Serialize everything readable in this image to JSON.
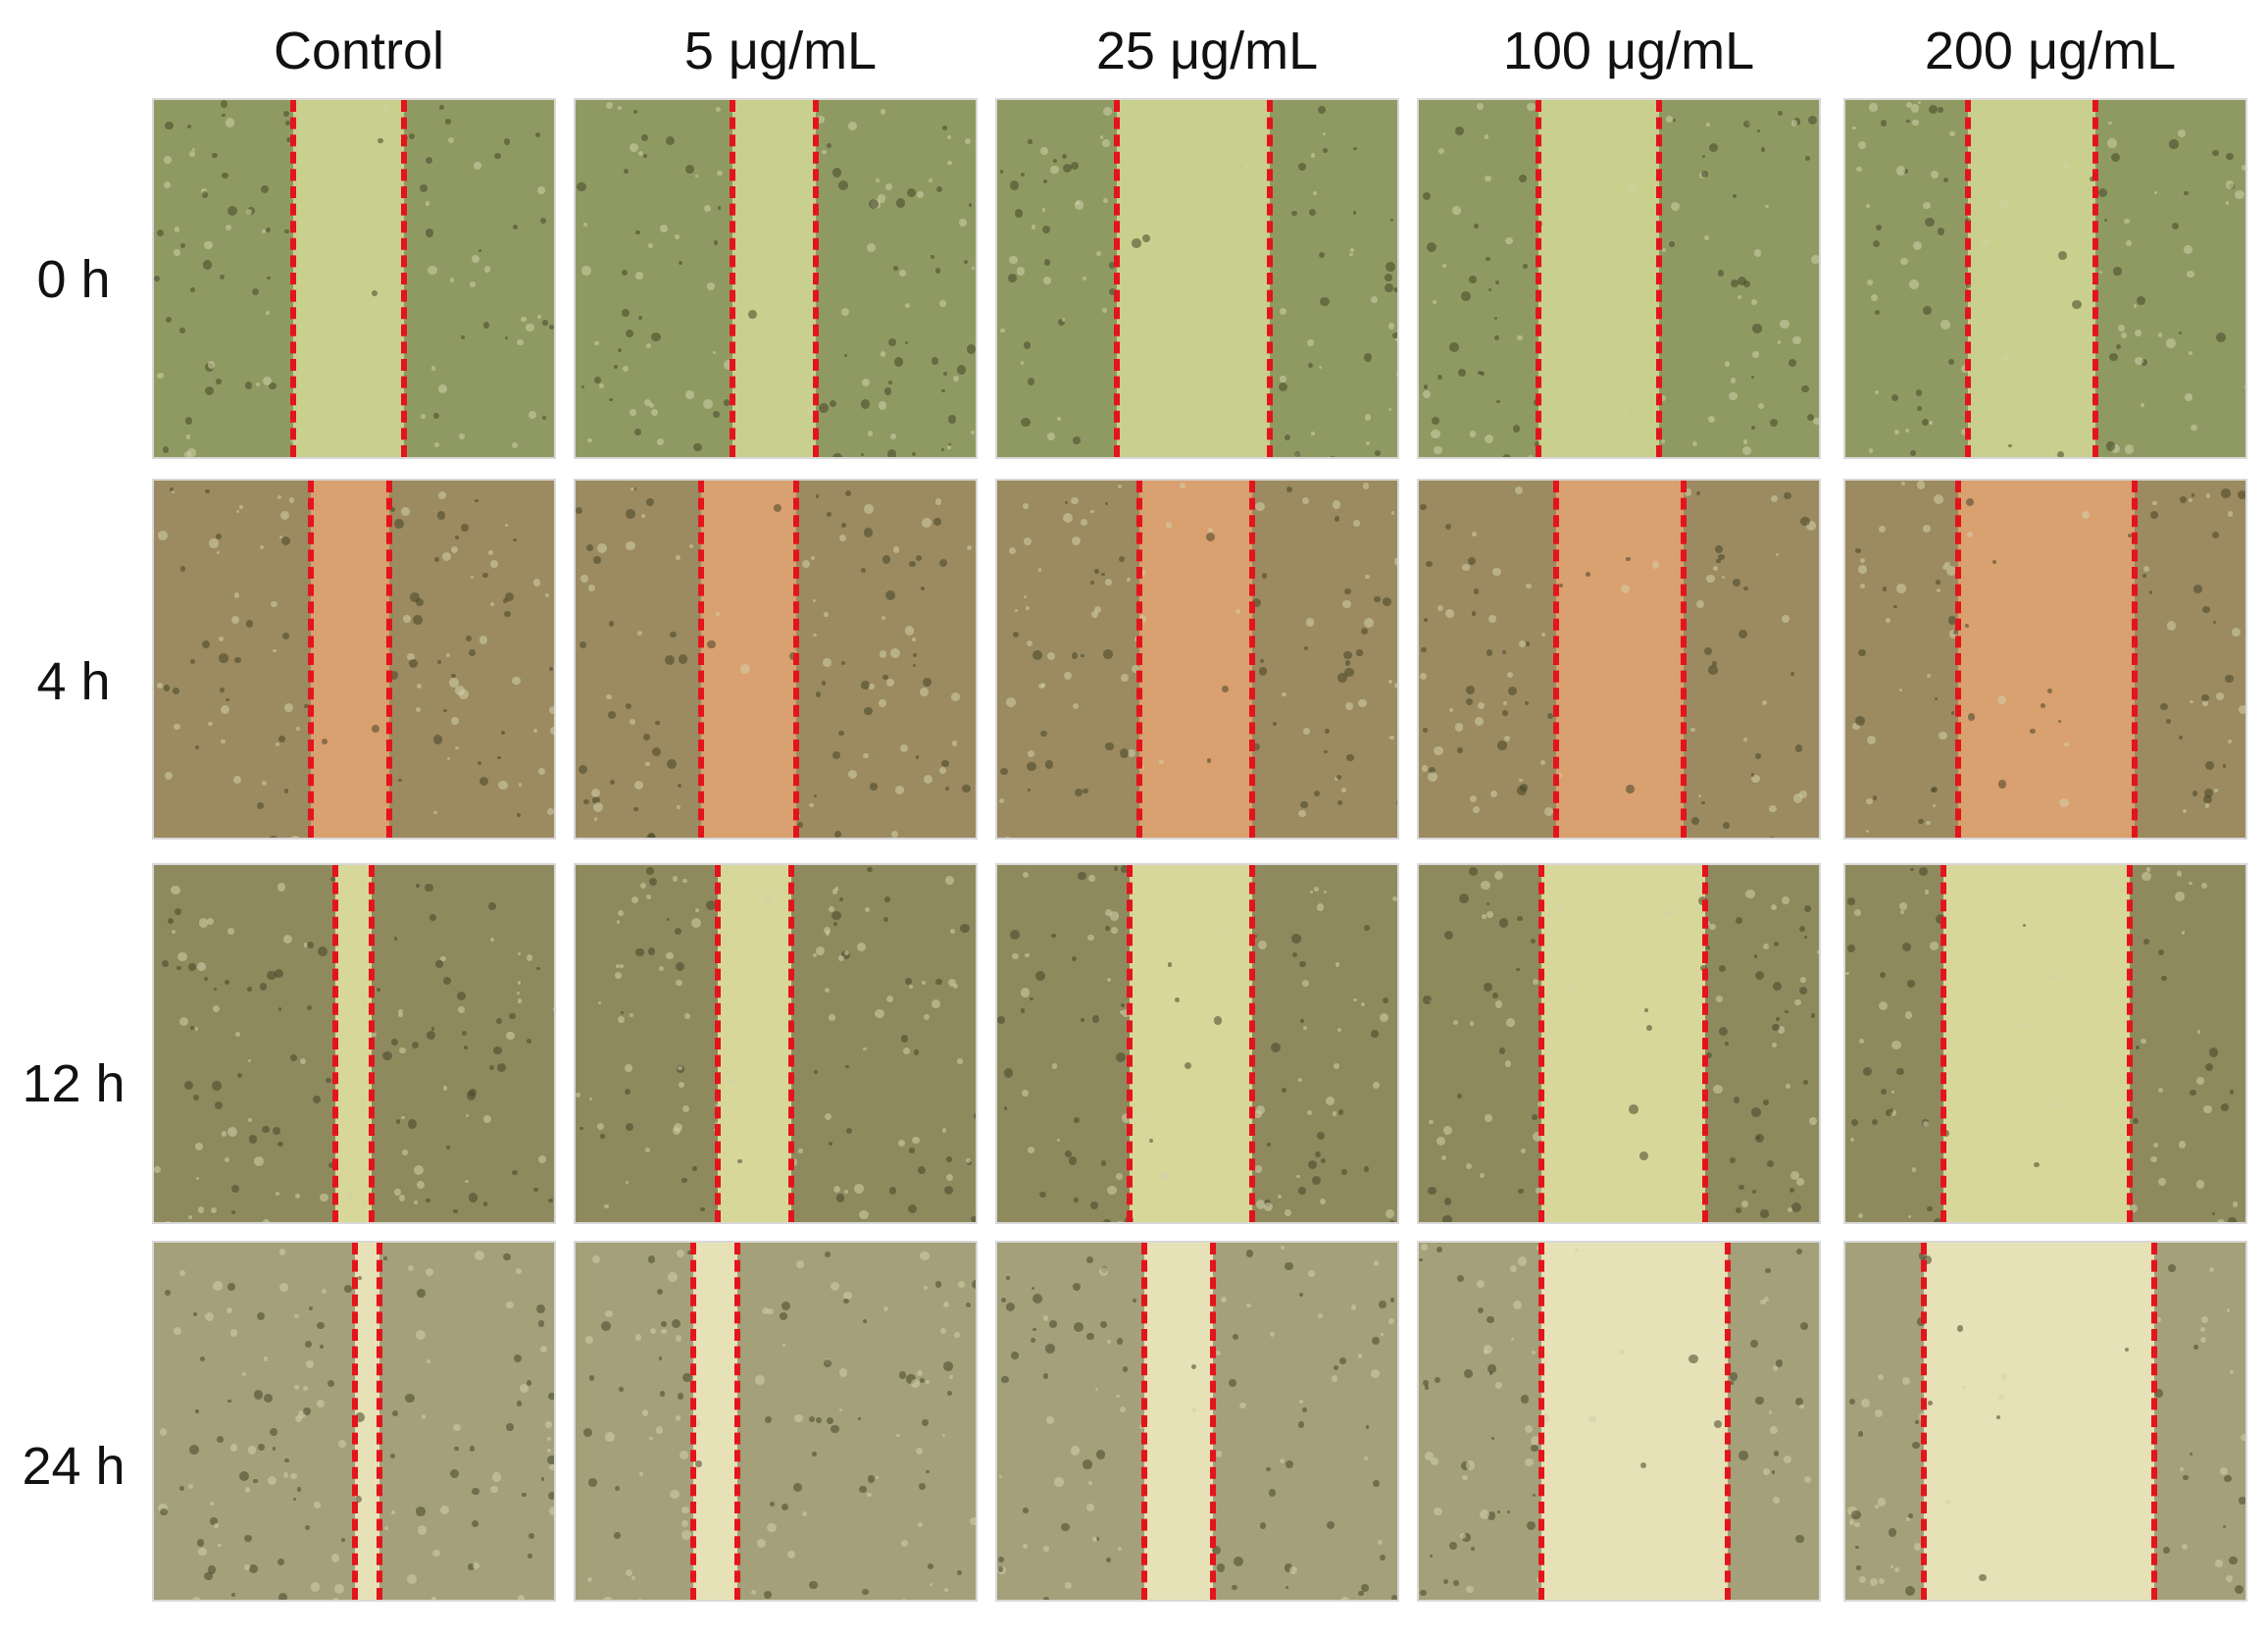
{
  "columns": [
    "Control",
    "5 μg/mL",
    "25 μg/mL",
    "100 μg/mL",
    "200 μg/mL"
  ],
  "rows": [
    "0 h",
    "4 h",
    "12 h",
    "24 h"
  ],
  "colors": {
    "scratch_line": "#e3141b",
    "label_text": "#111111"
  },
  "panel_style": {
    "row_0": {
      "cells": "#8f9a63",
      "gap": "#c9cf8c"
    },
    "row_1": {
      "cells": "#9c8a60",
      "gap": "#d9a070"
    },
    "row_2": {
      "cells": "#8e8a5e",
      "gap": "#d8d79a"
    },
    "row_3": {
      "cells": "#a3a07a",
      "gap": "#e6e1b6"
    }
  }
}
